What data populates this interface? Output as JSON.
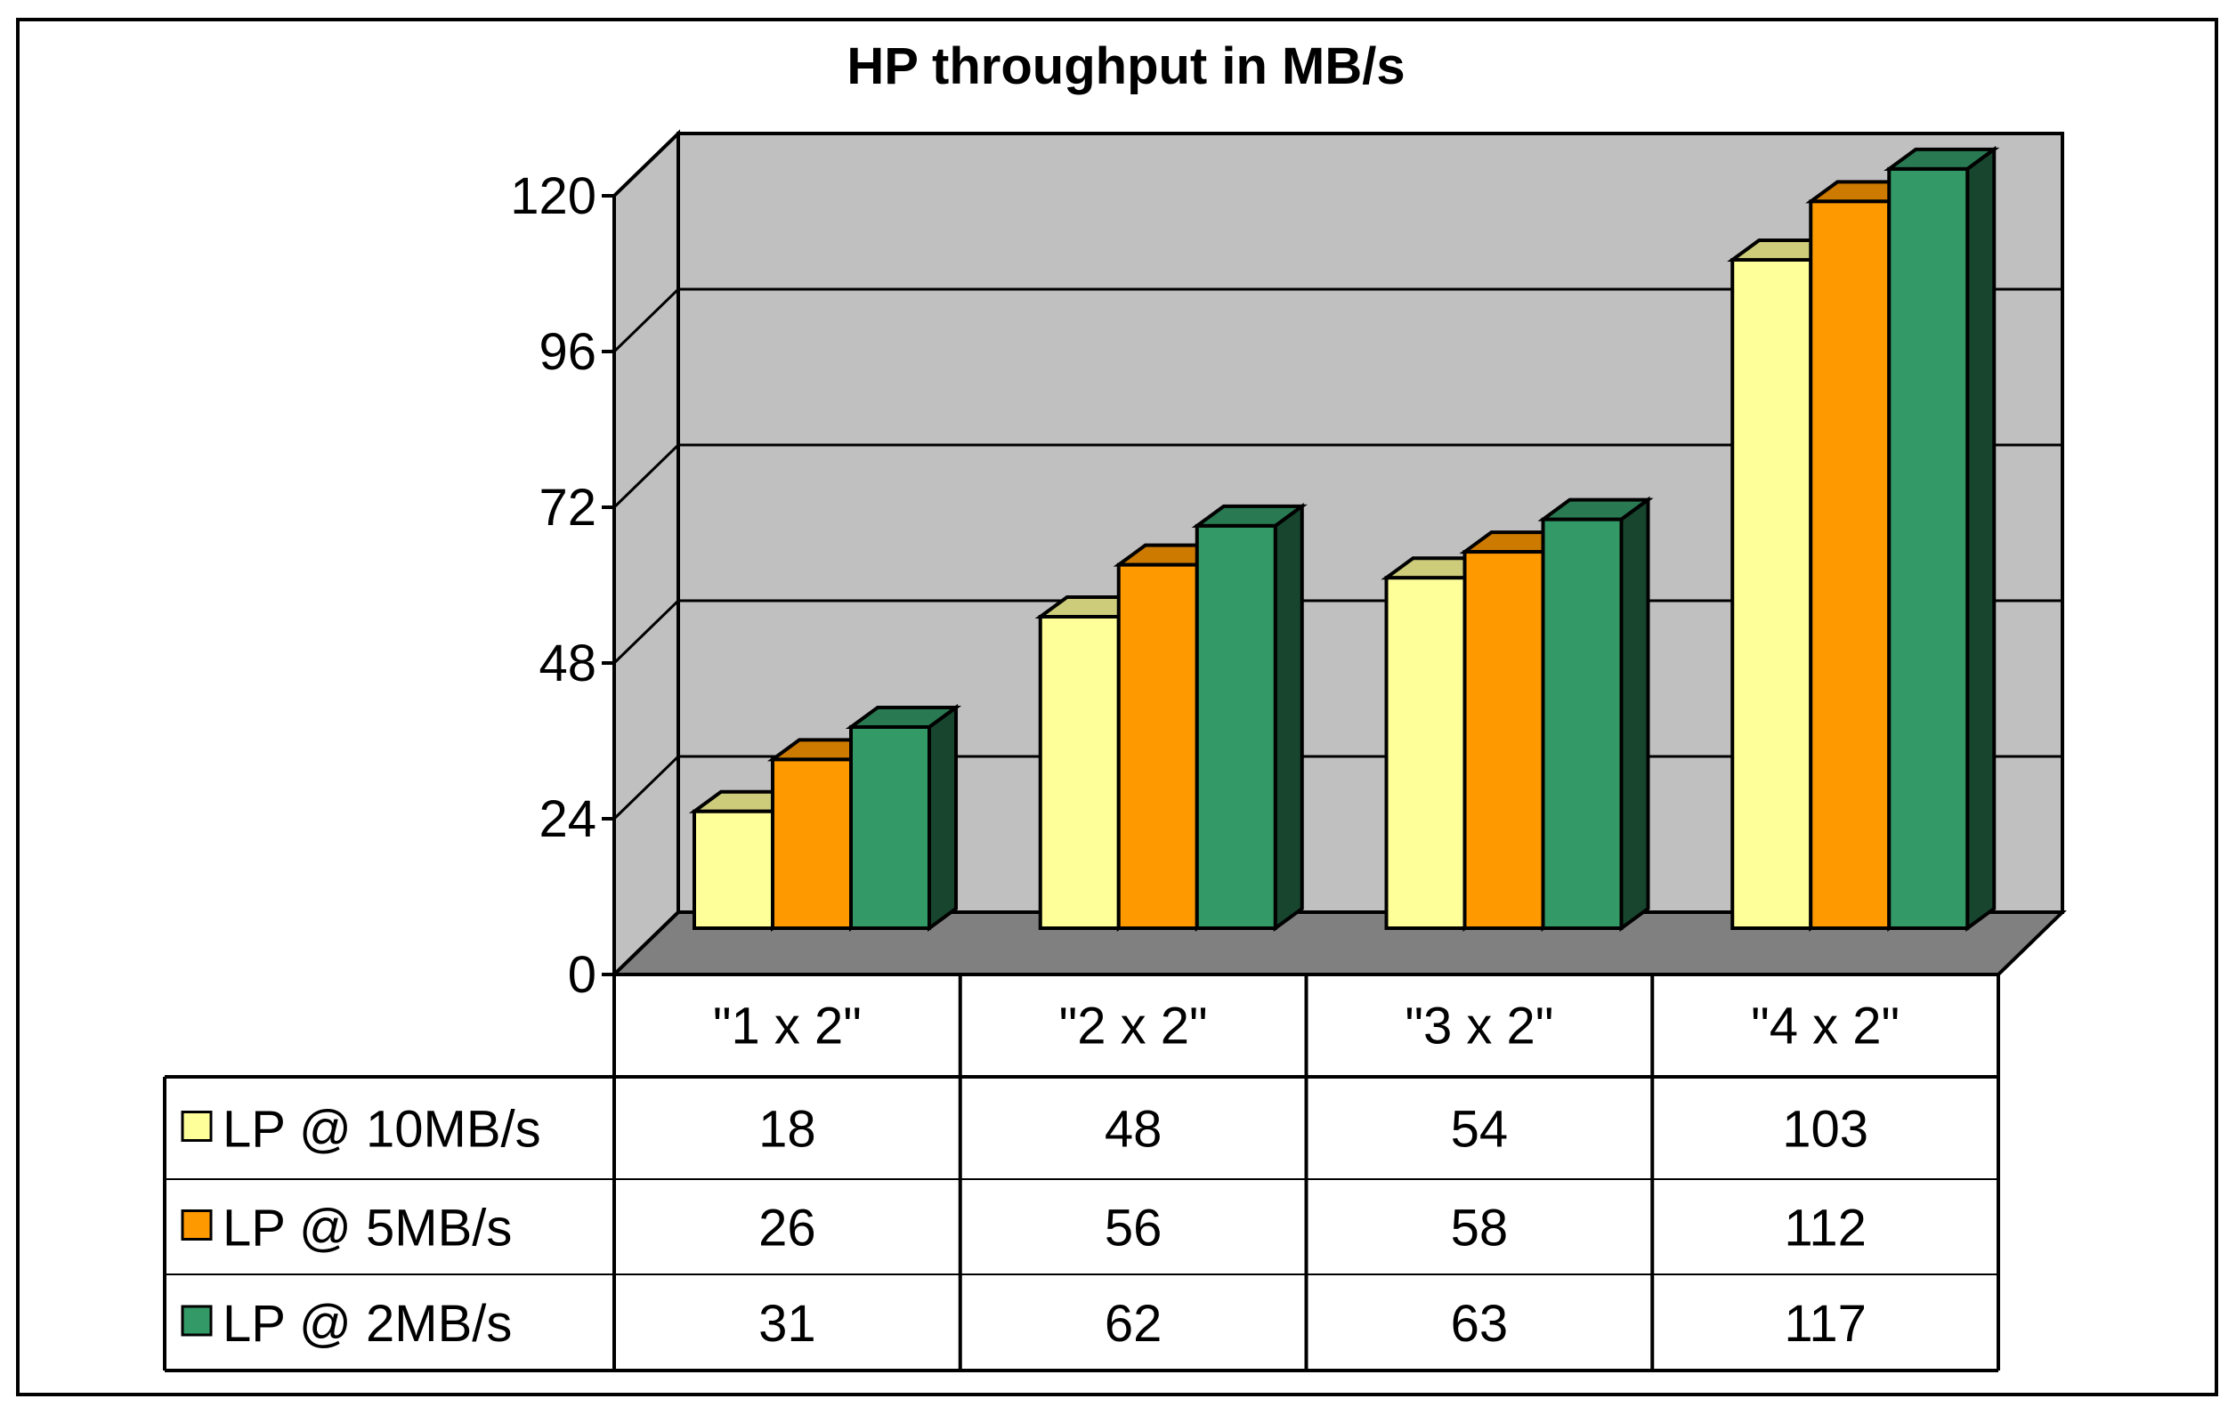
{
  "chart_data": {
    "type": "bar",
    "title": "HP throughput in MB/s",
    "xlabel": "",
    "ylabel": "",
    "ylim": [
      0,
      120
    ],
    "yticks": [
      0,
      24,
      48,
      72,
      96,
      120
    ],
    "categories": [
      "\"1 x 2\"",
      "\"2 x 2\"",
      "\"3 x 2\"",
      "\"4 x 2\""
    ],
    "series": [
      {
        "name": "LP @ 10MB/s",
        "values": [
          18,
          48,
          54,
          103
        ],
        "color": "#ffff99"
      },
      {
        "name": "LP @ 5MB/s",
        "values": [
          26,
          56,
          58,
          112
        ],
        "color": "#ff9900"
      },
      {
        "name": "LP @ 2MB/s",
        "values": [
          31,
          62,
          63,
          117
        ],
        "color": "#339966"
      }
    ],
    "grid": true,
    "legend": "data-table-left",
    "data_table": true
  }
}
